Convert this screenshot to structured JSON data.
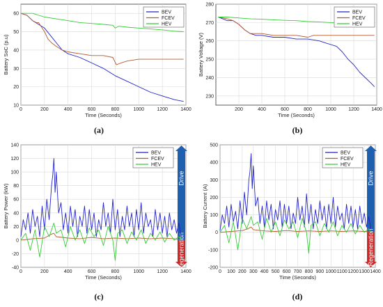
{
  "colors": {
    "BEV": "#2222cc",
    "FCEV": "#b05a2e",
    "HEV": "#33cc33",
    "drive": "#1f5fb0",
    "regen": "#cc2a2a",
    "grid": "#d8d8d8"
  },
  "chart_data": [
    {
      "id": "a",
      "type": "line",
      "caption": "(a)",
      "xlabel": "Time (Seconds)",
      "ylabel": "Battery SoC (p.u)",
      "xlim": [
        0,
        1400
      ],
      "ylim": [
        10,
        65
      ],
      "xticks": [
        0,
        200,
        400,
        600,
        800,
        1000,
        1200,
        1400
      ],
      "yticks": [
        10,
        20,
        30,
        40,
        50,
        60
      ],
      "grid": true,
      "legend": "top-right",
      "series": [
        {
          "name": "BEV",
          "x": [
            0,
            50,
            100,
            150,
            200,
            250,
            300,
            350,
            400,
            500,
            600,
            700,
            800,
            900,
            1000,
            1100,
            1200,
            1300,
            1380
          ],
          "y": [
            60,
            59,
            56,
            54,
            52,
            48,
            44,
            40,
            38,
            36,
            33,
            30,
            26,
            23,
            20,
            17,
            15,
            13,
            12
          ]
        },
        {
          "name": "FCEV",
          "x": [
            0,
            50,
            100,
            130,
            150,
            200,
            230,
            260,
            300,
            350,
            400,
            500,
            600,
            700,
            780,
            810,
            850,
            900,
            1000,
            1100,
            1200,
            1300,
            1380
          ],
          "y": [
            60,
            59,
            56,
            55,
            55,
            50,
            46,
            44,
            42,
            40,
            39,
            38,
            37,
            37,
            36,
            32,
            33,
            34,
            35,
            35,
            35,
            35,
            35
          ]
        },
        {
          "name": "HEV",
          "x": [
            0,
            100,
            200,
            300,
            400,
            500,
            600,
            700,
            780,
            800,
            830,
            900,
            1000,
            1100,
            1200,
            1300,
            1380
          ],
          "y": [
            60,
            60,
            58,
            57,
            56,
            55,
            54.5,
            54,
            53.5,
            52,
            53,
            52.5,
            52,
            51.5,
            51,
            50.3,
            50
          ]
        }
      ]
    },
    {
      "id": "b",
      "type": "line",
      "caption": "(b)",
      "xlabel": "Time (Seconds)",
      "ylabel": "Battery Voltage (V)",
      "xlim": [
        0,
        1400
      ],
      "ylim": [
        225,
        280
      ],
      "xticks": [
        200,
        400,
        600,
        800,
        1000,
        1200,
        1400
      ],
      "yticks": [
        230,
        240,
        250,
        260,
        270,
        280
      ],
      "grid": true,
      "legend": "top-right",
      "series": [
        {
          "name": "BEV",
          "x": [
            20,
            100,
            150,
            200,
            250,
            300,
            350,
            400,
            500,
            600,
            700,
            800,
            900,
            950,
            1000,
            1050,
            1100,
            1150,
            1200,
            1250,
            1300,
            1350,
            1380
          ],
          "y": [
            273,
            271,
            271,
            269,
            266,
            264,
            263,
            263,
            262,
            262,
            261,
            261,
            260,
            259,
            258,
            257,
            254,
            250,
            247,
            243,
            240,
            237,
            235
          ]
        },
        {
          "name": "FCEV",
          "x": [
            20,
            100,
            150,
            200,
            250,
            300,
            350,
            400,
            500,
            600,
            700,
            800,
            850,
            900,
            1000,
            1100,
            1200,
            1300,
            1380
          ],
          "y": [
            273,
            272,
            271,
            269,
            266,
            264,
            264,
            264,
            263,
            263,
            263,
            262,
            263,
            263,
            263,
            263,
            263,
            263,
            263
          ]
        },
        {
          "name": "HEV",
          "x": [
            20,
            100,
            200,
            300,
            400,
            500,
            600,
            700,
            800,
            900,
            1000,
            1100,
            1200,
            1300,
            1380
          ],
          "y": [
            273,
            273,
            272.5,
            272,
            271.8,
            271.5,
            271.2,
            271,
            270.5,
            270.3,
            270,
            269.5,
            269.3,
            269,
            268.8
          ]
        }
      ]
    },
    {
      "id": "c",
      "type": "line",
      "caption": "(c)",
      "xlabel": "Time (Seconds)",
      "ylabel": "Battery Power (kW)",
      "xlim": [
        0,
        1400
      ],
      "ylim": [
        -40,
        140
      ],
      "xticks": [
        0,
        200,
        400,
        600,
        800,
        1000,
        1200,
        1400
      ],
      "yticks": [
        -40,
        -20,
        0,
        20,
        40,
        60,
        80,
        100,
        120,
        140
      ],
      "grid": true,
      "legend": "top-right",
      "drive_label": "Drive",
      "regen_label": "Regeneration",
      "series": [
        {
          "name": "BEV",
          "x": [
            0,
            20,
            40,
            60,
            80,
            100,
            120,
            140,
            160,
            180,
            200,
            220,
            240,
            260,
            270,
            280,
            290,
            300,
            320,
            340,
            360,
            380,
            400,
            420,
            440,
            460,
            480,
            500,
            520,
            540,
            560,
            580,
            600,
            620,
            640,
            660,
            680,
            700,
            720,
            740,
            760,
            780,
            800,
            820,
            840,
            860,
            880,
            900,
            920,
            940,
            960,
            980,
            1000,
            1020,
            1040,
            1060,
            1080,
            1100,
            1120,
            1140,
            1160,
            1180,
            1200,
            1220,
            1240,
            1260,
            1280,
            1300,
            1320,
            1340,
            1360
          ],
          "y": [
            5,
            30,
            15,
            40,
            10,
            45,
            20,
            35,
            5,
            50,
            15,
            60,
            30,
            80,
            95,
            120,
            70,
            100,
            40,
            55,
            15,
            40,
            10,
            50,
            20,
            45,
            5,
            35,
            20,
            50,
            10,
            45,
            15,
            40,
            5,
            30,
            15,
            55,
            20,
            40,
            10,
            60,
            15,
            45,
            5,
            35,
            15,
            50,
            20,
            40,
            5,
            45,
            15,
            55,
            10,
            40,
            20,
            30,
            5,
            45,
            15,
            40,
            10,
            35,
            5,
            40,
            15,
            30,
            10,
            25,
            5
          ]
        },
        {
          "name": "FCEV",
          "x": [
            0,
            100,
            200,
            250,
            280,
            300,
            400,
            500,
            600,
            700,
            800,
            900,
            1000,
            1100,
            1200,
            1300,
            1360
          ],
          "y": [
            0,
            2,
            3,
            8,
            10,
            5,
            3,
            2,
            4,
            2,
            3,
            2,
            3,
            2,
            3,
            2,
            1
          ]
        },
        {
          "name": "HEV",
          "x": [
            0,
            40,
            80,
            120,
            160,
            200,
            240,
            280,
            300,
            340,
            380,
            420,
            460,
            500,
            540,
            580,
            620,
            660,
            700,
            740,
            780,
            800,
            820,
            860,
            900,
            940,
            980,
            1020,
            1060,
            1100,
            1140,
            1180,
            1220,
            1260,
            1300,
            1340,
            1360
          ],
          "y": [
            0,
            10,
            -15,
            15,
            -25,
            20,
            5,
            25,
            10,
            15,
            -10,
            20,
            0,
            15,
            -5,
            18,
            5,
            15,
            -8,
            20,
            0,
            -30,
            10,
            15,
            -5,
            12,
            0,
            15,
            -5,
            10,
            0,
            12,
            -3,
            10,
            0,
            5,
            0
          ]
        }
      ]
    },
    {
      "id": "d",
      "type": "line",
      "caption": "(d)",
      "xlabel": "Time (Seconds)",
      "ylabel": "Battery Current (A)",
      "xlim": [
        0,
        1400
      ],
      "ylim": [
        -200,
        500
      ],
      "xticks": [
        0,
        100,
        200,
        300,
        400,
        500,
        600,
        700,
        800,
        900,
        1000,
        1100,
        1200,
        1300,
        1400
      ],
      "yticks": [
        -200,
        -100,
        0,
        100,
        200,
        300,
        400,
        500
      ],
      "grid": true,
      "legend": "top-right",
      "drive_label": "Drive",
      "regen_label": "Regeneration",
      "series": [
        {
          "name": "BEV",
          "x": [
            0,
            20,
            40,
            60,
            80,
            100,
            120,
            140,
            160,
            180,
            200,
            220,
            240,
            260,
            270,
            280,
            290,
            300,
            320,
            340,
            360,
            380,
            400,
            420,
            440,
            460,
            480,
            500,
            520,
            540,
            560,
            580,
            600,
            620,
            640,
            660,
            680,
            700,
            720,
            740,
            760,
            780,
            800,
            820,
            840,
            860,
            880,
            900,
            920,
            940,
            960,
            980,
            1000,
            1020,
            1040,
            1060,
            1080,
            1100,
            1120,
            1140,
            1160,
            1180,
            1200,
            1220,
            1240,
            1260,
            1280,
            1300,
            1320,
            1340,
            1360
          ],
          "y": [
            10,
            100,
            50,
            150,
            30,
            160,
            60,
            120,
            20,
            180,
            50,
            230,
            100,
            300,
            350,
            450,
            250,
            380,
            150,
            200,
            50,
            150,
            30,
            180,
            70,
            160,
            20,
            130,
            70,
            180,
            30,
            160,
            50,
            150,
            20,
            110,
            50,
            200,
            70,
            150,
            30,
            220,
            50,
            160,
            20,
            130,
            50,
            180,
            70,
            150,
            20,
            160,
            50,
            200,
            30,
            150,
            70,
            110,
            20,
            160,
            50,
            150,
            30,
            130,
            20,
            150,
            50,
            110,
            30,
            90,
            20
          ]
        },
        {
          "name": "FCEV",
          "x": [
            0,
            100,
            200,
            250,
            280,
            300,
            400,
            500,
            600,
            700,
            800,
            900,
            1000,
            1100,
            1200,
            1300,
            1360
          ],
          "y": [
            0,
            5,
            10,
            20,
            30,
            15,
            8,
            5,
            10,
            5,
            8,
            5,
            8,
            5,
            8,
            5,
            3
          ]
        },
        {
          "name": "HEV",
          "x": [
            0,
            40,
            80,
            120,
            160,
            200,
            240,
            280,
            300,
            340,
            380,
            420,
            460,
            500,
            540,
            580,
            620,
            660,
            700,
            740,
            780,
            800,
            820,
            860,
            900,
            940,
            980,
            1020,
            1060,
            1100,
            1140,
            1180,
            1220,
            1260,
            1300,
            1340,
            1360
          ],
          "y": [
            0,
            40,
            -60,
            60,
            -100,
            80,
            20,
            90,
            40,
            60,
            -40,
            80,
            0,
            60,
            -20,
            70,
            20,
            60,
            -30,
            80,
            0,
            -120,
            40,
            60,
            -20,
            50,
            0,
            60,
            -20,
            40,
            0,
            50,
            -10,
            40,
            0,
            20,
            0
          ]
        }
      ]
    }
  ]
}
